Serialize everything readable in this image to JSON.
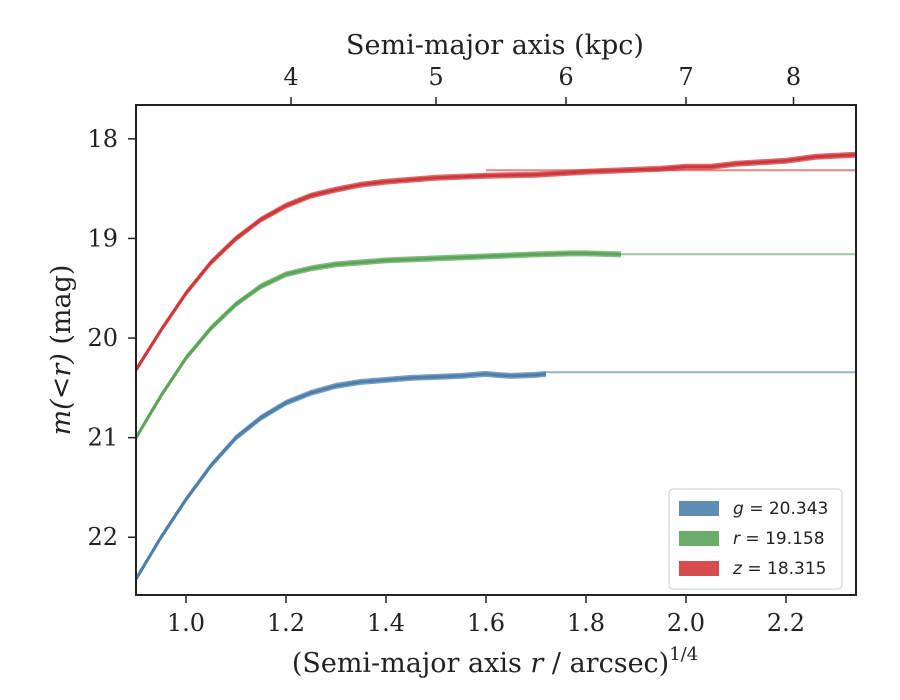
{
  "chart_data": {
    "type": "line",
    "xlabel": "(Semi-major axis r / arcsec)",
    "xlabel_pre": "(Semi-major axis ",
    "xlabel_var": "r",
    "xlabel_post": " / arcsec)",
    "xlabel_sup": "1/4",
    "ylabel": "m(<r) (mag)",
    "ylabel_math": "m(<r)",
    "ylabel_unit": " (mag)",
    "top_xlabel": "Semi-major axis (kpc)",
    "xlim": [
      0.9,
      2.34
    ],
    "ylim": [
      22.58,
      17.66
    ],
    "y_inverted": true,
    "x_ticks": [
      1.0,
      1.2,
      1.4,
      1.6,
      1.8,
      2.0,
      2.2
    ],
    "x_tick_labels": [
      "1.0",
      "1.2",
      "1.4",
      "1.6",
      "1.8",
      "2.0",
      "2.2"
    ],
    "y_ticks": [
      18,
      19,
      20,
      21,
      22
    ],
    "y_tick_labels": [
      "18",
      "19",
      "20",
      "21",
      "22"
    ],
    "top_ticks_x": [
      1.21,
      1.5,
      1.76,
      2.0,
      2.215
    ],
    "top_tick_labels": [
      "4",
      "5",
      "6",
      "7",
      "8"
    ],
    "legend_position": "lower-right",
    "series": [
      {
        "name": "g = 20.343",
        "legend_var": "g",
        "legend_value": "20.343",
        "color": "#4e7fac",
        "asymptote": 20.343,
        "asymptote_start": 1.72,
        "band_width": 0.03,
        "x": [
          0.9,
          0.95,
          1.0,
          1.05,
          1.1,
          1.15,
          1.2,
          1.25,
          1.3,
          1.35,
          1.4,
          1.45,
          1.5,
          1.55,
          1.6,
          1.62,
          1.65,
          1.7,
          1.72
        ],
        "y": [
          22.42,
          22.0,
          21.62,
          21.28,
          21.0,
          20.8,
          20.65,
          20.55,
          20.48,
          20.44,
          20.42,
          20.4,
          20.39,
          20.38,
          20.36,
          20.37,
          20.38,
          20.37,
          20.36
        ]
      },
      {
        "name": "r = 19.158",
        "legend_var": "r",
        "legend_value": "19.158",
        "color": "#5ba55a",
        "asymptote": 19.158,
        "asymptote_start": 1.87,
        "band_width": 0.03,
        "x": [
          0.9,
          0.95,
          1.0,
          1.05,
          1.1,
          1.15,
          1.2,
          1.25,
          1.3,
          1.35,
          1.4,
          1.5,
          1.6,
          1.7,
          1.77,
          1.8,
          1.87
        ],
        "y": [
          21.0,
          20.58,
          20.2,
          19.9,
          19.66,
          19.48,
          19.36,
          19.3,
          19.26,
          19.24,
          19.22,
          19.2,
          19.18,
          19.16,
          19.15,
          19.15,
          19.16
        ]
      },
      {
        "name": "z = 18.315",
        "legend_var": "z",
        "legend_value": "18.315",
        "color": "#d1373a",
        "asymptote": 18.315,
        "asymptote_start": 1.6,
        "band_width": 0.03,
        "x": [
          0.9,
          0.95,
          1.0,
          1.05,
          1.1,
          1.15,
          1.2,
          1.25,
          1.3,
          1.35,
          1.4,
          1.5,
          1.6,
          1.7,
          1.8,
          1.9,
          1.95,
          2.0,
          2.05,
          2.1,
          2.2,
          2.26,
          2.34
        ],
        "y": [
          20.32,
          19.92,
          19.55,
          19.24,
          19.0,
          18.81,
          18.67,
          18.57,
          18.51,
          18.46,
          18.43,
          18.39,
          18.37,
          18.36,
          18.33,
          18.31,
          18.3,
          18.28,
          18.28,
          18.25,
          18.22,
          18.18,
          18.16
        ]
      }
    ]
  }
}
